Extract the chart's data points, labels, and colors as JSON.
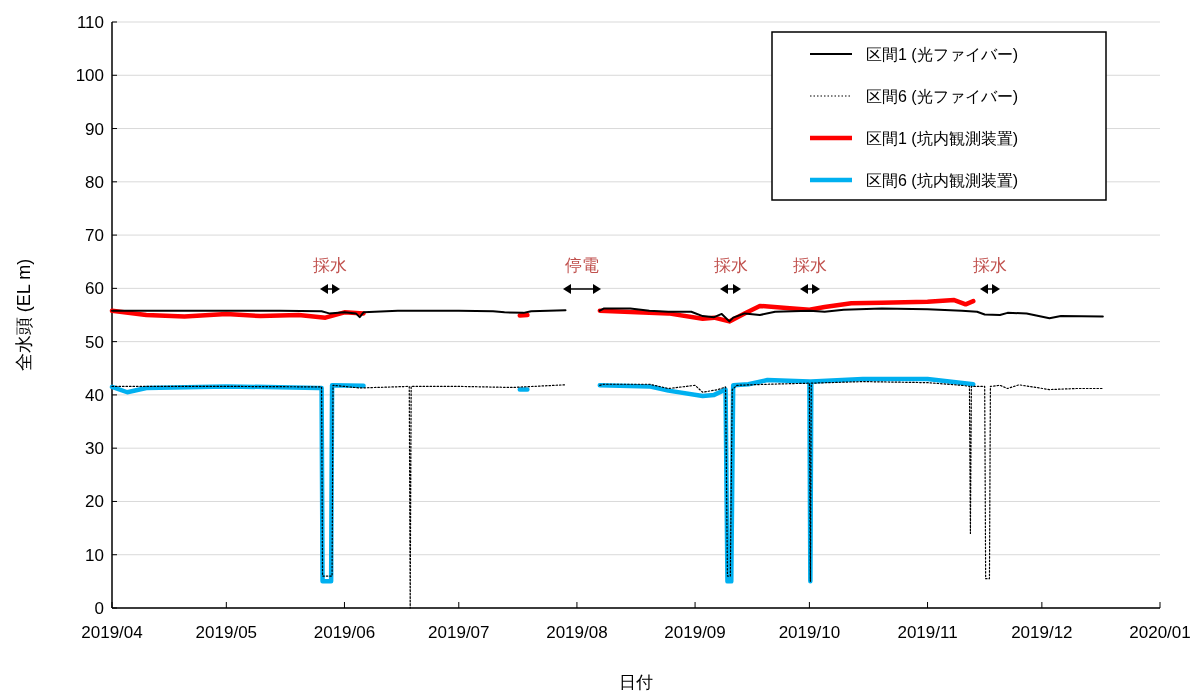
{
  "chart_data": {
    "type": "line",
    "xlabel": "日付",
    "ylabel": "全水頭 (EL m)",
    "xlim": [
      "2019-04-01",
      "2020-01-01"
    ],
    "xticks": [
      {
        "value": "2019-04-01",
        "label": "2019/04"
      },
      {
        "value": "2019-05-01",
        "label": "2019/05"
      },
      {
        "value": "2019-06-01",
        "label": "2019/06"
      },
      {
        "value": "2019-07-01",
        "label": "2019/07"
      },
      {
        "value": "2019-08-01",
        "label": "2019/08"
      },
      {
        "value": "2019-09-01",
        "label": "2019/09"
      },
      {
        "value": "2019-10-01",
        "label": "2019/10"
      },
      {
        "value": "2019-11-01",
        "label": "2019/11"
      },
      {
        "value": "2019-12-01",
        "label": "2019/12"
      },
      {
        "value": "2020-01-01",
        "label": "2020/01"
      }
    ],
    "ylim": [
      0,
      110
    ],
    "yticks": [
      0,
      10,
      20,
      30,
      40,
      50,
      60,
      70,
      80,
      90,
      100,
      110
    ],
    "grid": "y",
    "legend": "top right",
    "annotations": [
      "採水",
      "停電",
      "採水",
      "採水",
      "採水"
    ],
    "series": [
      {
        "name": "区間1 (光ファイバー)",
        "color": "#000000",
        "line_style": "solid",
        "x": [
          "2019-04-01",
          "2019-04-15",
          "2019-05-01",
          "2019-05-15",
          "2019-05-26",
          "2019-05-28",
          "2019-06-01",
          "2019-06-04",
          "2019-06-05",
          "2019-06-06",
          "2019-06-15",
          "2019-07-01",
          "2019-07-10",
          "2019-07-13",
          "2019-07-18",
          "2019-07-20",
          "2019-07-29",
          "2019-08-02",
          "2019-08-07",
          "2019-08-08",
          "2019-08-15",
          "2019-08-20",
          "2019-08-25",
          "2019-08-31",
          "2019-09-03",
          "2019-09-06",
          "2019-09-08",
          "2019-09-10",
          "2019-09-11",
          "2019-09-14",
          "2019-09-18",
          "2019-09-22",
          "2019-10-01",
          "2019-10-05",
          "2019-10-10",
          "2019-10-20",
          "2019-11-01",
          "2019-11-10",
          "2019-11-14",
          "2019-11-16",
          "2019-11-20",
          "2019-11-22",
          "2019-11-27",
          "2019-12-03",
          "2019-12-06",
          "2019-12-17"
        ],
        "values": [
          55.8,
          55.8,
          55.8,
          55.8,
          55.7,
          55.3,
          55.5,
          55.3,
          54.6,
          55.5,
          55.8,
          55.8,
          55.7,
          55.5,
          55.4,
          55.7,
          55.9,
          null,
          55.8,
          56.2,
          56.2,
          55.8,
          55.6,
          55.6,
          54.8,
          54.6,
          55.2,
          53.8,
          54.5,
          55.3,
          55.0,
          55.6,
          55.8,
          55.6,
          56.0,
          56.2,
          56.1,
          55.8,
          55.6,
          55.1,
          55.0,
          55.4,
          55.3,
          54.4,
          54.8,
          54.7
        ]
      },
      {
        "name": "区間6 (光ファイバー)",
        "color": "#000000",
        "line_style": "dotted",
        "x": [
          "2019-04-01",
          "2019-05-01",
          "2019-05-26",
          "2019-05-26T06:00",
          "2019-05-28T18:00",
          "2019-05-29",
          "2019-06-05",
          "2019-06-18",
          "2019-06-18T06:00",
          "2019-06-18T12:00",
          "2019-07-01",
          "2019-07-15",
          "2019-07-29",
          "2019-08-02",
          "2019-08-07",
          "2019-08-08",
          "2019-08-20",
          "2019-08-25",
          "2019-09-01",
          "2019-09-03",
          "2019-09-07",
          "2019-09-09",
          "2019-09-09T12:00",
          "2019-09-10T06:00",
          "2019-09-10T18:00",
          "2019-09-12",
          "2019-09-20",
          "2019-10-01",
          "2019-10-01T06:00",
          "2019-10-01T12:00",
          "2019-10-15",
          "2019-11-01",
          "2019-11-10",
          "2019-11-12",
          "2019-11-12T06:00",
          "2019-11-12T12:00",
          "2019-11-16",
          "2019-11-16T06:00",
          "2019-11-17T06:00",
          "2019-11-17T12:00",
          "2019-11-20",
          "2019-11-22",
          "2019-11-25",
          "2019-12-03",
          "2019-12-10",
          "2019-12-17"
        ],
        "values": [
          41.6,
          41.6,
          41.5,
          6,
          6,
          41.8,
          41.3,
          41.6,
          0,
          41.6,
          41.6,
          41.4,
          41.9,
          null,
          41.8,
          42.0,
          42.0,
          41.2,
          41.8,
          40.5,
          41.0,
          41.5,
          6,
          6,
          41.0,
          41.8,
          42.0,
          42.2,
          5,
          42.2,
          42.5,
          42.3,
          41.8,
          41.6,
          14,
          41.6,
          41.6,
          5.5,
          5.5,
          41.6,
          41.8,
          41.2,
          41.9,
          41.0,
          41.2,
          41.2
        ]
      },
      {
        "name": "区間1 (坑内観測装置)",
        "color": "#ff0000",
        "line_style": "solid",
        "x": [
          "2019-04-01",
          "2019-04-10",
          "2019-04-20",
          "2019-05-01",
          "2019-05-10",
          "2019-05-20",
          "2019-05-27",
          "2019-06-01",
          "2019-06-06",
          "2019-06-07",
          "2019-07-17",
          "2019-07-19",
          "2019-07-20",
          "2019-08-07",
          "2019-08-20",
          "2019-08-25",
          "2019-09-03",
          "2019-09-06",
          "2019-09-10",
          "2019-09-14",
          "2019-09-18",
          "2019-09-25",
          "2019-10-01",
          "2019-10-05",
          "2019-10-12",
          "2019-10-20",
          "2019-11-01",
          "2019-11-08",
          "2019-11-11",
          "2019-11-13"
        ],
        "values": [
          55.8,
          55.0,
          54.7,
          55.2,
          54.8,
          55.0,
          54.5,
          55.5,
          55.3,
          null,
          54.9,
          55.0,
          null,
          55.8,
          55.4,
          55.3,
          54.3,
          54.5,
          53.8,
          55.3,
          56.7,
          56.3,
          56.0,
          56.5,
          57.2,
          57.3,
          57.5,
          57.8,
          57.0,
          57.6
        ]
      },
      {
        "name": "区間6 (坑内観測装置)",
        "color": "#00b0f0",
        "line_style": "solid",
        "x": [
          "2019-04-01",
          "2019-04-05",
          "2019-04-10",
          "2019-05-01",
          "2019-05-25",
          "2019-05-26",
          "2019-05-26T06:00",
          "2019-05-28T12:00",
          "2019-05-28T18:00",
          "2019-06-06",
          "2019-06-07",
          "2019-07-17",
          "2019-07-19",
          "2019-07-20",
          "2019-08-07",
          "2019-08-20",
          "2019-08-25",
          "2019-09-03",
          "2019-09-06",
          "2019-09-09",
          "2019-09-09T12:00",
          "2019-09-10T12:00",
          "2019-09-11",
          "2019-09-15",
          "2019-09-20",
          "2019-10-01",
          "2019-10-01T06:00",
          "2019-10-01T12:00",
          "2019-10-15",
          "2019-11-01",
          "2019-11-13"
        ],
        "values": [
          41.5,
          40.5,
          41.3,
          41.6,
          41.3,
          41.3,
          5,
          5,
          41.8,
          41.7,
          null,
          41.0,
          41.0,
          null,
          41.8,
          41.6,
          40.8,
          39.8,
          40.0,
          41.0,
          5,
          5,
          41.8,
          42.0,
          42.8,
          42.5,
          5,
          42.5,
          43.0,
          43.0,
          42.0
        ]
      }
    ]
  }
}
